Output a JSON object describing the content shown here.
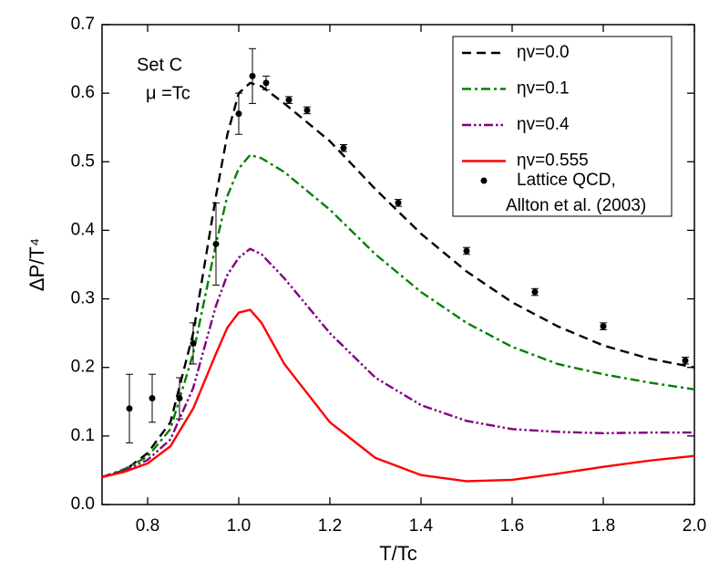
{
  "chart_data": {
    "type": "line",
    "xlabel": "T/Tc",
    "ylabel": "ΔP/T⁴",
    "annotations": [
      "Set C",
      "μ =Tc"
    ],
    "xlim": [
      0.7,
      2.0
    ],
    "ylim": [
      0.0,
      0.7
    ],
    "xticks": [
      {
        "value": 0.8,
        "label": "0.8"
      },
      {
        "value": 1.0,
        "label": "1.0"
      },
      {
        "value": 1.2,
        "label": "1.2"
      },
      {
        "value": 1.4,
        "label": "1.4"
      },
      {
        "value": 1.6,
        "label": "1.6"
      },
      {
        "value": 1.8,
        "label": "1.8"
      },
      {
        "value": 2.0,
        "label": "2.0"
      }
    ],
    "yticks": [
      {
        "value": 0.0,
        "label": "0.0"
      },
      0.1,
      0.2,
      0.3,
      0.4,
      0.5,
      0.6,
      0.7
    ],
    "legend": "upper right",
    "x": [
      0.7,
      0.75,
      0.8,
      0.85,
      0.9,
      0.95,
      0.975,
      1.0,
      1.025,
      1.05,
      1.1,
      1.2,
      1.3,
      1.4,
      1.5,
      1.6,
      1.7,
      1.8,
      1.9,
      2.0
    ],
    "series": [
      {
        "name": "ηv=0.0",
        "color": "#000000",
        "style": "dashed",
        "values": [
          0.04,
          0.05,
          0.075,
          0.12,
          0.25,
          0.45,
          0.54,
          0.6,
          0.615,
          0.61,
          0.585,
          0.53,
          0.46,
          0.395,
          0.34,
          0.295,
          0.26,
          0.232,
          0.213,
          0.2
        ]
      },
      {
        "name": "ηv=0.1",
        "color": "#008000",
        "style": "dashdot",
        "values": [
          0.04,
          0.052,
          0.07,
          0.11,
          0.22,
          0.38,
          0.45,
          0.49,
          0.51,
          0.505,
          0.485,
          0.43,
          0.365,
          0.31,
          0.265,
          0.23,
          0.205,
          0.19,
          0.178,
          0.168
        ]
      },
      {
        "name": "ηv=0.4",
        "color": "#800080",
        "style": "dashdotdot",
        "values": [
          0.04,
          0.05,
          0.065,
          0.095,
          0.17,
          0.29,
          0.335,
          0.36,
          0.373,
          0.365,
          0.33,
          0.25,
          0.185,
          0.145,
          0.122,
          0.11,
          0.106,
          0.104,
          0.105,
          0.105
        ]
      },
      {
        "name": "ηv=0.555",
        "color": "#ff0000",
        "style": "solid",
        "values": [
          0.04,
          0.048,
          0.06,
          0.085,
          0.14,
          0.22,
          0.258,
          0.28,
          0.284,
          0.265,
          0.205,
          0.12,
          0.068,
          0.043,
          0.034,
          0.036,
          0.045,
          0.055,
          0.064,
          0.071
        ]
      }
    ],
    "points": {
      "name": [
        "Lattice QCD,",
        "Allton et al. (2003)"
      ],
      "color": "#000000",
      "x": [
        0.76,
        0.81,
        0.87,
        0.9,
        0.95,
        1.0,
        1.03,
        1.06,
        1.11,
        1.15,
        1.23,
        1.35,
        1.5,
        1.65,
        1.8,
        1.98
      ],
      "values": [
        0.14,
        0.155,
        0.155,
        0.235,
        0.38,
        0.57,
        0.625,
        0.615,
        0.59,
        0.575,
        0.52,
        0.44,
        0.37,
        0.31,
        0.26,
        0.21
      ],
      "errors": [
        0.05,
        0.035,
        0.03,
        0.03,
        0.06,
        0.03,
        0.04,
        0.01,
        0.005,
        0.005,
        0.005,
        0.005,
        0.005,
        0.005,
        0.005,
        0.005
      ]
    }
  }
}
